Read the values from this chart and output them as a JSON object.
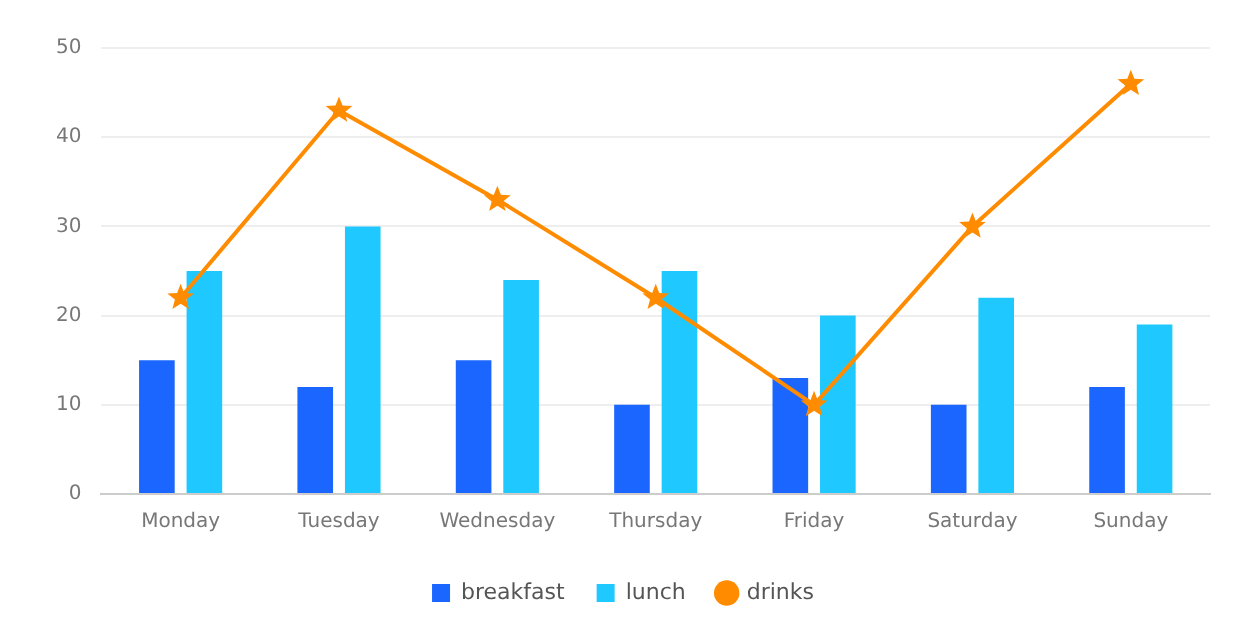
{
  "chart_data": {
    "type": "bar",
    "categories": [
      "Monday",
      "Tuesday",
      "Wednesday",
      "Thursday",
      "Friday",
      "Saturday",
      "Sunday"
    ],
    "series": [
      {
        "name": "breakfast",
        "color": "#1a66ff",
        "values": [
          15,
          12,
          15,
          10,
          13,
          10,
          12
        ]
      },
      {
        "name": "lunch",
        "color": "#1fc8ff",
        "values": [
          25,
          30,
          24,
          25,
          20,
          22,
          19
        ]
      },
      {
        "name": "drinks",
        "type": "line",
        "color": "#ff8c00",
        "values": [
          22,
          43,
          33,
          22,
          10,
          30,
          46
        ],
        "marker": "star",
        "line_style": "solid"
      }
    ],
    "ylim": [
      0,
      50
    ],
    "yticks": [
      0,
      10,
      20,
      30,
      40,
      50
    ],
    "grid": "y",
    "legend": "bottom"
  }
}
